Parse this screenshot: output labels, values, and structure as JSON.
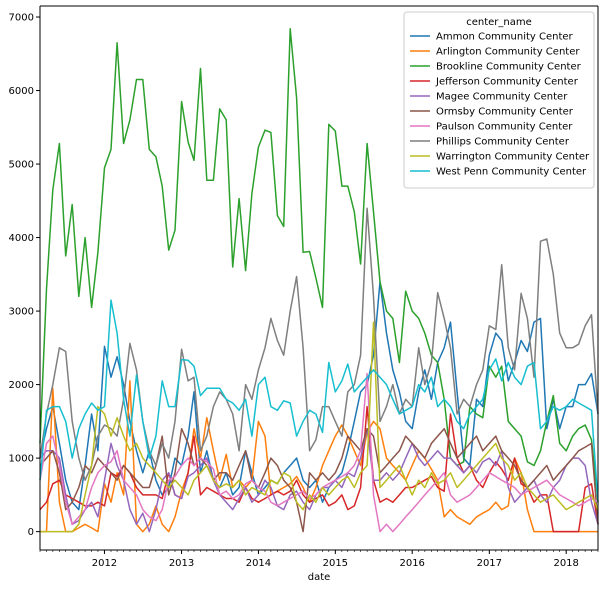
{
  "chart_data": {
    "type": "line",
    "xlabel": "date",
    "ylabel": "",
    "xlim": [
      "2011-03-01",
      "2018-06-01"
    ],
    "ylim": [
      -250,
      7150
    ],
    "x_ticks": [
      {
        "date": "2012-01-01",
        "label": "2012"
      },
      {
        "date": "2013-01-01",
        "label": "2013"
      },
      {
        "date": "2014-01-01",
        "label": "2014"
      },
      {
        "date": "2015-01-01",
        "label": "2015"
      },
      {
        "date": "2016-01-01",
        "label": "2016"
      },
      {
        "date": "2017-01-01",
        "label": "2017"
      },
      {
        "date": "2018-01-01",
        "label": "2018"
      }
    ],
    "y_ticks": [
      0,
      1000,
      2000,
      3000,
      4000,
      5000,
      6000,
      7000
    ],
    "legend_title": "center_name",
    "legend_position": "top-right",
    "x": [
      "2011-03",
      "2011-04",
      "2011-05",
      "2011-06",
      "2011-07",
      "2011-08",
      "2011-09",
      "2011-10",
      "2011-11",
      "2011-12",
      "2012-01",
      "2012-02",
      "2012-03",
      "2012-04",
      "2012-05",
      "2012-06",
      "2012-07",
      "2012-08",
      "2012-09",
      "2012-10",
      "2012-11",
      "2012-12",
      "2013-01",
      "2013-02",
      "2013-03",
      "2013-04",
      "2013-05",
      "2013-06",
      "2013-07",
      "2013-08",
      "2013-09",
      "2013-10",
      "2013-11",
      "2013-12",
      "2014-01",
      "2014-02",
      "2014-03",
      "2014-04",
      "2014-05",
      "2014-06",
      "2014-07",
      "2014-08",
      "2014-09",
      "2014-10",
      "2014-11",
      "2014-12",
      "2015-01",
      "2015-02",
      "2015-03",
      "2015-04",
      "2015-05",
      "2015-06",
      "2015-07",
      "2015-08",
      "2015-09",
      "2015-10",
      "2015-11",
      "2015-12",
      "2016-01",
      "2016-02",
      "2016-03",
      "2016-04",
      "2016-05",
      "2016-06",
      "2016-07",
      "2016-08",
      "2016-09",
      "2016-10",
      "2016-11",
      "2016-12",
      "2017-01",
      "2017-02",
      "2017-03",
      "2017-04",
      "2017-05",
      "2017-06",
      "2017-07",
      "2017-08",
      "2017-09",
      "2017-10",
      "2017-11",
      "2017-12",
      "2018-01",
      "2018-02",
      "2018-03",
      "2018-04",
      "2018-05",
      "2018-06"
    ],
    "series": [
      {
        "name": "Ammon Community Center",
        "color": "#1f77b4",
        "values": [
          1000,
          1400,
          1700,
          1200,
          700,
          400,
          300,
          900,
          1600,
          1100,
          2520,
          2100,
          2380,
          2000,
          1500,
          1100,
          800,
          1100,
          700,
          500,
          600,
          1000,
          900,
          1300,
          1900,
          800,
          1100,
          700,
          600,
          800,
          500,
          600,
          1100,
          800,
          500,
          600,
          700,
          650,
          800,
          900,
          1000,
          700,
          600,
          700,
          400,
          600,
          700,
          800,
          1100,
          1500,
          1900,
          2000,
          2400,
          3400,
          2700,
          2200,
          1900,
          1500,
          1400,
          1900,
          2200,
          1800,
          2300,
          2500,
          2850,
          1900,
          1000,
          900,
          1800,
          1700,
          2400,
          2700,
          2600,
          2050,
          2300,
          2600,
          2450,
          2850,
          2900,
          1400,
          1800,
          1400,
          1700,
          1700,
          2000,
          2000,
          2150,
          1600
        ]
      },
      {
        "name": "Arlington Community Center",
        "color": "#ff7f0e",
        "values": [
          0,
          0,
          1950,
          400,
          0,
          0,
          50,
          100,
          50,
          0,
          650,
          400,
          800,
          500,
          2050,
          100,
          0,
          100,
          350,
          100,
          0,
          200,
          550,
          800,
          1400,
          1000,
          1550,
          1100,
          700,
          1050,
          600,
          700,
          600,
          700,
          1500,
          1300,
          500,
          550,
          600,
          650,
          750,
          600,
          400,
          600,
          900,
          1100,
          1300,
          1450,
          1300,
          1100,
          900,
          1350,
          1500,
          1400,
          1000,
          900,
          800,
          700,
          900,
          1100,
          1000,
          850,
          700,
          200,
          300,
          200,
          150,
          100,
          200,
          250,
          300,
          400,
          300,
          350,
          1000,
          800,
          300,
          0,
          0,
          0,
          0,
          0,
          0,
          0,
          0,
          0,
          0,
          0
        ]
      },
      {
        "name": "Brookline Community Center",
        "color": "#2ca02c",
        "values": [
          1200,
          3300,
          4650,
          5280,
          3750,
          4450,
          3200,
          4000,
          3050,
          3800,
          4950,
          5200,
          6650,
          5280,
          5600,
          6150,
          6150,
          5200,
          5100,
          4700,
          3830,
          4100,
          5850,
          5300,
          5050,
          6300,
          4780,
          4780,
          5750,
          5600,
          3600,
          4530,
          3550,
          4600,
          5230,
          5460,
          5430,
          4300,
          4150,
          6840,
          5900,
          3800,
          3810,
          3450,
          3050,
          5540,
          5450,
          4700,
          4700,
          4350,
          3640,
          5280,
          4350,
          3400,
          3000,
          2900,
          2300,
          3270,
          3000,
          2900,
          2700,
          2400,
          2300,
          1800,
          1000,
          900,
          950,
          1700,
          1600,
          1550,
          2250,
          2100,
          2250,
          1500,
          1400,
          1300,
          950,
          900,
          1100,
          1500,
          1850,
          1200,
          1100,
          1300,
          1400,
          1450,
          1250,
          400
        ]
      },
      {
        "name": "Jefferson Community Center",
        "color": "#d62728",
        "values": [
          300,
          400,
          650,
          700,
          500,
          450,
          400,
          350,
          350,
          400,
          350,
          800,
          750,
          900,
          800,
          600,
          500,
          500,
          500,
          450,
          800,
          500,
          450,
          800,
          1300,
          500,
          600,
          550,
          500,
          450,
          450,
          400,
          600,
          450,
          400,
          450,
          500,
          550,
          500,
          550,
          700,
          500,
          400,
          450,
          500,
          350,
          400,
          500,
          300,
          350,
          600,
          1700,
          700,
          400,
          450,
          400,
          500,
          600,
          600,
          650,
          700,
          750,
          600,
          550,
          1600,
          1000,
          800,
          900,
          700,
          600,
          800,
          950,
          850,
          700,
          1000,
          650,
          600,
          400,
          500,
          500,
          0,
          0,
          0,
          0,
          0,
          600,
          650,
          100
        ]
      },
      {
        "name": "Magee Community Center",
        "color": "#9467bd",
        "values": [
          1000,
          1100,
          1100,
          1000,
          500,
          100,
          150,
          300,
          400,
          200,
          700,
          1200,
          900,
          700,
          300,
          100,
          250,
          0,
          300,
          700,
          800,
          500,
          450,
          750,
          800,
          900,
          1000,
          700,
          500,
          400,
          300,
          450,
          600,
          400,
          500,
          700,
          600,
          350,
          300,
          500,
          550,
          400,
          300,
          500,
          600,
          600,
          700,
          600,
          800,
          750,
          1000,
          1400,
          700,
          700,
          800,
          700,
          800,
          1000,
          1200,
          1000,
          900,
          1000,
          1100,
          1000,
          1000,
          900,
          800,
          900,
          800,
          950,
          1000,
          900,
          1100,
          600,
          400,
          500,
          600,
          700,
          500,
          400,
          600,
          700,
          900,
          1000,
          1000,
          900,
          400,
          100
        ]
      },
      {
        "name": "Ormsby Community Center",
        "color": "#8c564b",
        "values": [
          900,
          1000,
          1100,
          800,
          300,
          400,
          600,
          900,
          800,
          1000,
          900,
          800,
          700,
          900,
          800,
          700,
          600,
          600,
          900,
          1300,
          500,
          800,
          1400,
          1200,
          900,
          1000,
          900,
          700,
          800,
          800,
          700,
          900,
          1100,
          700,
          600,
          800,
          1000,
          900,
          700,
          600,
          400,
          0,
          800,
          700,
          800,
          700,
          800,
          1000,
          1300,
          1200,
          1100,
          1400,
          1300,
          800,
          900,
          1000,
          1100,
          1300,
          1200,
          1100,
          1000,
          1200,
          1300,
          1400,
          1200,
          1000,
          1100,
          1200,
          1300,
          1100,
          1200,
          1300,
          1100,
          1000,
          900,
          700,
          600,
          700,
          800,
          900,
          700,
          800,
          900,
          1000,
          1100,
          1150,
          1200,
          100
        ]
      },
      {
        "name": "Paulson Community Center",
        "color": "#e377c2",
        "values": [
          700,
          1200,
          1300,
          900,
          400,
          100,
          200,
          300,
          600,
          800,
          900,
          950,
          1100,
          700,
          600,
          500,
          300,
          200,
          150,
          300,
          700,
          750,
          900,
          1000,
          900,
          1000,
          950,
          850,
          500,
          550,
          450,
          500,
          650,
          700,
          600,
          550,
          400,
          350,
          400,
          450,
          500,
          550,
          450,
          500,
          600,
          650,
          700,
          750,
          800,
          900,
          1100,
          2150,
          500,
          0,
          100,
          0,
          100,
          200,
          300,
          400,
          500,
          600,
          700,
          800,
          500,
          400,
          450,
          500,
          600,
          700,
          800,
          750,
          700,
          650,
          600,
          500,
          550,
          600,
          650,
          700,
          600,
          500,
          450,
          400,
          350,
          400,
          450,
          400
        ]
      },
      {
        "name": "Phillips Community Center",
        "color": "#7f7f7f",
        "values": [
          1000,
          1600,
          2000,
          2500,
          2450,
          1500,
          1000,
          700,
          900,
          1300,
          1450,
          1400,
          1300,
          1800,
          2560,
          2200,
          1500,
          1100,
          900,
          1200,
          1000,
          1500,
          2480,
          2050,
          2100,
          1100,
          1300,
          1700,
          1900,
          1800,
          1600,
          1100,
          2000,
          1800,
          2200,
          2500,
          2900,
          2600,
          2400,
          3000,
          3470,
          2500,
          1100,
          1250,
          1700,
          1700,
          1500,
          1300,
          1900,
          2000,
          2400,
          4400,
          3200,
          1500,
          1700,
          2000,
          1600,
          1800,
          1700,
          2500,
          2000,
          2300,
          3250,
          2900,
          2500,
          1600,
          1800,
          1700,
          2000,
          2200,
          2800,
          2750,
          3630,
          2500,
          2200,
          3240,
          2900,
          2100,
          3950,
          3980,
          3500,
          2700,
          2500,
          2500,
          2550,
          2800,
          2950,
          1600
        ]
      },
      {
        "name": "Warrington Community Center",
        "color": "#bcbd22",
        "values": [
          0,
          0,
          0,
          0,
          0,
          0,
          100,
          500,
          900,
          1700,
          1600,
          1300,
          1550,
          1300,
          1100,
          1200,
          1000,
          900,
          800,
          700,
          600,
          700,
          600,
          500,
          700,
          800,
          900,
          700,
          600,
          650,
          600,
          700,
          500,
          600,
          550,
          500,
          700,
          650,
          800,
          750,
          400,
          300,
          500,
          400,
          600,
          500,
          600,
          700,
          750,
          600,
          800,
          900,
          2850,
          600,
          700,
          800,
          900,
          700,
          500,
          700,
          600,
          800,
          650,
          700,
          800,
          600,
          700,
          800,
          900,
          1000,
          1100,
          1200,
          1000,
          900,
          700,
          800,
          600,
          500,
          400,
          450,
          500,
          400,
          300,
          350,
          400,
          450,
          500,
          300
        ]
      },
      {
        "name": "West Penn Community Center",
        "color": "#17becf",
        "values": [
          700,
          1650,
          1700,
          1700,
          1500,
          1000,
          1400,
          1600,
          1750,
          1650,
          1700,
          3150,
          2700,
          1800,
          1300,
          2130,
          1500,
          1000,
          1300,
          2050,
          1700,
          1700,
          2340,
          2330,
          2250,
          1850,
          1950,
          1950,
          1950,
          1800,
          1750,
          1650,
          1800,
          1300,
          2000,
          2100,
          1700,
          1650,
          1780,
          1750,
          1300,
          1500,
          1650,
          1600,
          1350,
          2300,
          1900,
          2050,
          2280,
          1900,
          2000,
          2100,
          2200,
          2100,
          2000,
          1800,
          1600,
          1650,
          1700,
          2000,
          1900,
          2100,
          1700,
          1800,
          1700,
          1500,
          1400,
          1600,
          1700,
          1800,
          2200,
          2350,
          2050,
          2300,
          2100,
          2000,
          2250,
          2300,
          1400,
          1500,
          1700,
          1650,
          1700,
          1800,
          1750,
          1700,
          1650,
          400
        ]
      }
    ]
  }
}
